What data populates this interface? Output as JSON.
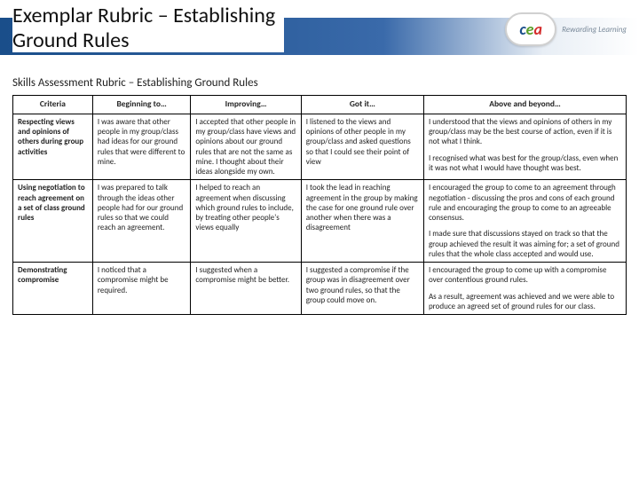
{
  "header": {
    "title_line1": "Exemplar Rubric – Establishing",
    "title_line2": "Ground Rules",
    "logo_letters": {
      "c": "c",
      "e": "e",
      "a": "a"
    },
    "logo_tagline": "Rewarding Learning",
    "band_color_dark": "#1a4e8a",
    "band_color_light": "#ffffff"
  },
  "subtitle": "Skills Assessment Rubric – Establishing Ground Rules",
  "table": {
    "columns": [
      "Criteria",
      "Beginning to…",
      "Improving…",
      "Got it…",
      "Above and beyond…"
    ],
    "rows": [
      {
        "criteria": "Respecting views and opinions of others during group activities",
        "beginning": [
          "I was aware that other people in my group/class had ideas for our ground rules that were different to mine."
        ],
        "improving": [
          "I accepted that other people in my group/class have views and opinions about our ground rules that are not the same as mine. I thought about their ideas alongside my own."
        ],
        "got_it": [
          "I listened to the views and opinions of other people in my group/class and asked questions so that I could see their point of view"
        ],
        "above": [
          "I understood that the views and opinions of others in my group/class may be the best course of action, even if it is not what I think.",
          "I recognised what was best for the group/class, even when it was not what I would have thought was best."
        ]
      },
      {
        "criteria": "Using negotiation to reach agreement on a set of class ground rules",
        "beginning": [
          "I was prepared to talk through the ideas other people had for our ground rules so that we could reach an agreement."
        ],
        "improving": [
          "I helped to reach an agreement when discussing which ground rules to include, by treating other people's views equally"
        ],
        "got_it": [
          "I took the lead in reaching agreement in the group by making the case for one ground rule over another when there was a disagreement"
        ],
        "above": [
          "I encouraged the group to come to an agreement through negotiation - discussing the pros and cons of each ground rule and encouraging the group to come to an agreeable consensus.",
          "I made sure that discussions stayed on track so that the group achieved the result it was aiming for; a set of ground rules that the whole class accepted and would use."
        ]
      },
      {
        "criteria": "Demonstrating compromise",
        "beginning": [
          "I noticed that a compromise might be required."
        ],
        "improving": [
          "I suggested when a compromise might be better."
        ],
        "got_it": [
          "I suggested a compromise if the group was in disagreement over two ground rules, so that the group could move on."
        ],
        "above": [
          "I encouraged the group to come up with a compromise over contentious ground rules.",
          "As a result, agreement was achieved and we were able to produce an agreed set of ground rules for our class."
        ]
      }
    ]
  }
}
